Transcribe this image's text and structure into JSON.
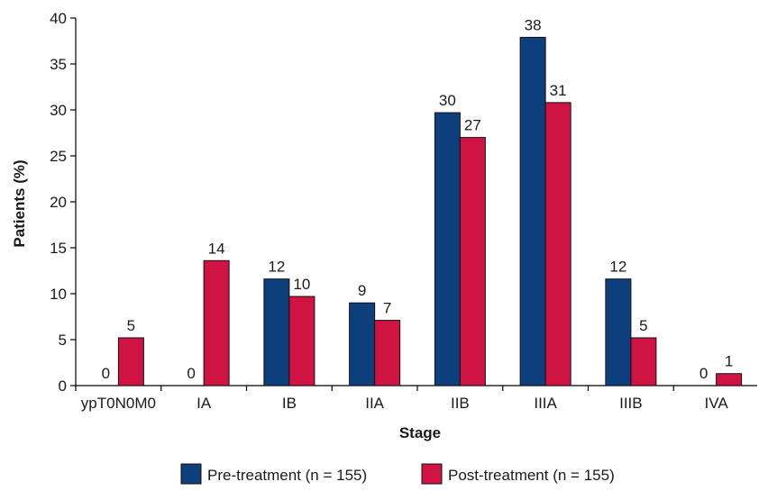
{
  "chart_data": {
    "type": "bar",
    "xlabel": "Stage",
    "ylabel": "Patients (%)",
    "ylim": [
      0,
      40
    ],
    "yticks": [
      0,
      5,
      10,
      15,
      20,
      25,
      30,
      35,
      40
    ],
    "grid": false,
    "legend_position": "bottom",
    "categories": [
      "ypT0N0M0",
      "IA",
      "IB",
      "IIA",
      "IIB",
      "IIIA",
      "IIIB",
      "IVA"
    ],
    "series": [
      {
        "name": "Pre-treatment (n = 155)",
        "color": "#0d3f7c",
        "values": [
          0,
          0,
          11.6,
          9.0,
          29.7,
          37.9,
          11.6,
          0
        ],
        "labels": [
          "0",
          "0",
          "12",
          "9",
          "30",
          "38",
          "12",
          "0"
        ]
      },
      {
        "name": "Post-treatment (n = 155)",
        "color": "#cf1343",
        "values": [
          5.2,
          13.6,
          9.7,
          7.1,
          27.0,
          30.8,
          5.2,
          1.3
        ],
        "labels": [
          "5",
          "14",
          "10",
          "7",
          "27",
          "31",
          "5",
          "1"
        ]
      }
    ]
  }
}
